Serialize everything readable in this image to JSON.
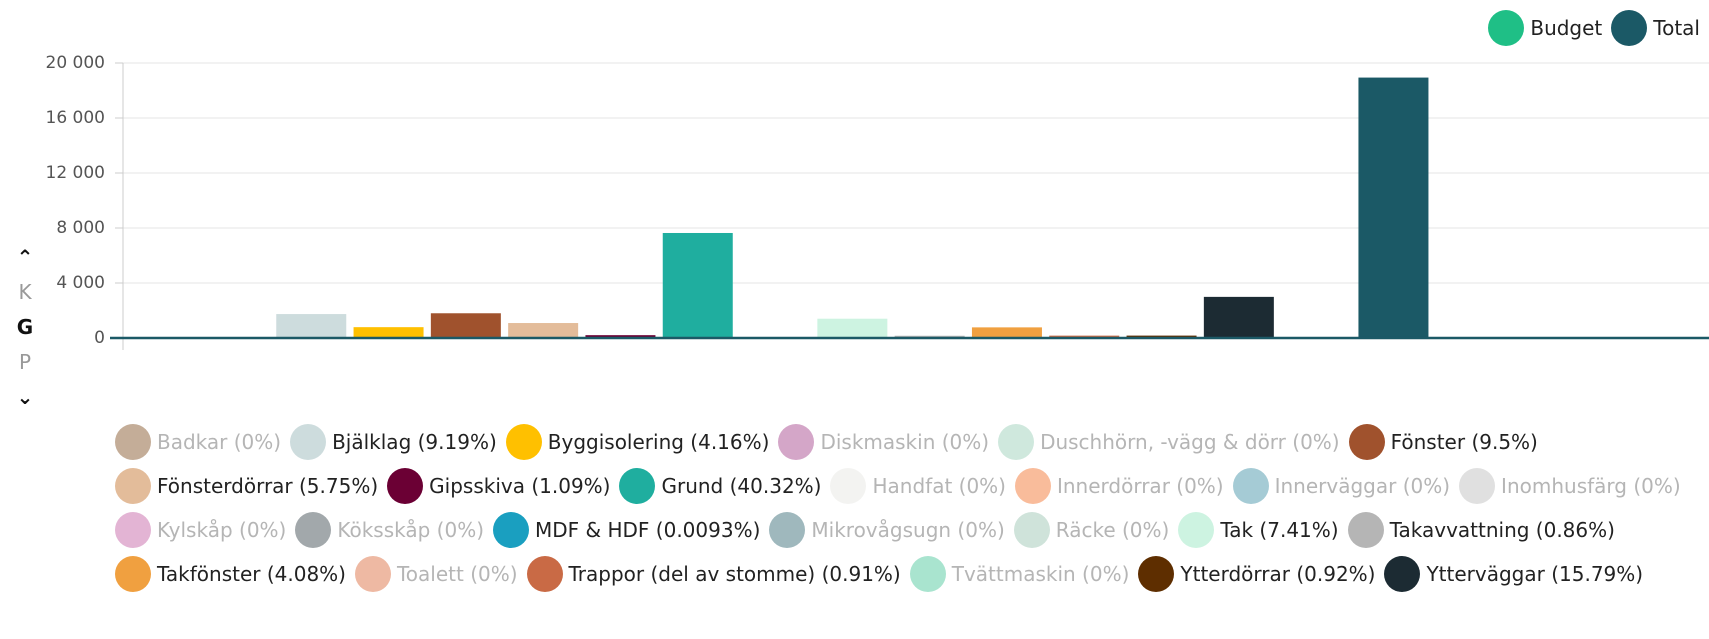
{
  "chart_data": {
    "type": "bar",
    "series_legend": [
      {
        "name": "Budget",
        "color": "#1fbf86"
      },
      {
        "name": "Total",
        "color": "#1b5966"
      }
    ],
    "categories": [
      null,
      null,
      null,
      null,
      null,
      null,
      null,
      null,
      null,
      null,
      null,
      null,
      null,
      null,
      null,
      null,
      null
    ],
    "values": [
      null,
      null,
      1741,
      788,
      1799,
      1089,
      206,
      7637,
      2,
      1403,
      163,
      773,
      172,
      174,
      2991,
      null,
      18940
    ],
    "colors": [
      null,
      null,
      "#cddcdd",
      "#ffc000",
      "#a0522d",
      "#e3bc9a",
      "#6b0034",
      "#1fae9f",
      "#1a9fc0",
      "#cdf3e1",
      "#b5b5b5",
      "#f0a040",
      "#c96a45",
      "#5e2e00",
      "#1c2b33",
      null,
      "#1b5966"
    ],
    "ylim": [
      0,
      20000
    ],
    "yticks": [
      0,
      {
        "value": 4000,
        "label": "4 000"
      },
      {
        "value": 8000,
        "label": "8 000"
      },
      {
        "value": 12000,
        "label": "12 000"
      },
      {
        "value": 16000,
        "label": "16 000"
      },
      {
        "value": 20000,
        "label": "20 000"
      }
    ],
    "grid": true,
    "legend_items": [
      {
        "label": "Badkar (0%)",
        "color": "#c4ad98",
        "hidden": true
      },
      {
        "label": "Bjälklag (9.19%)",
        "color": "#cddcdd",
        "hidden": false
      },
      {
        "label": "Byggisolering (4.16%)",
        "color": "#ffc000",
        "hidden": false
      },
      {
        "label": "Diskmaskin (0%)",
        "color": "#d4a6c8",
        "hidden": true
      },
      {
        "label": "Duschhörn, -vägg & dörr (0%)",
        "color": "#cfe8dd",
        "hidden": true
      },
      {
        "label": "Fönster (9.5%)",
        "color": "#a0522d",
        "hidden": false
      },
      {
        "label": "Fönsterdörrar (5.75%)",
        "color": "#e3bc9a",
        "hidden": false
      },
      {
        "label": "Gipsskiva (1.09%)",
        "color": "#6b0034",
        "hidden": false
      },
      {
        "label": "Grund (40.32%)",
        "color": "#1fae9f",
        "hidden": false
      },
      {
        "label": "Handfat (0%)",
        "color": "#f3f3f1",
        "hidden": true
      },
      {
        "label": "Innerdörrar (0%)",
        "color": "#f9bc9b",
        "hidden": true
      },
      {
        "label": "Innerväggar (0%)",
        "color": "#a5cbd5",
        "hidden": true
      },
      {
        "label": "Inomhusfärg (0%)",
        "color": "#e0e0e0",
        "hidden": true
      },
      {
        "label": "Kylskåp (0%)",
        "color": "#e3b4d4",
        "hidden": true
      },
      {
        "label": "Köksskåp (0%)",
        "color": "#a2a8ab",
        "hidden": true
      },
      {
        "label": "MDF & HDF (0.0093%)",
        "color": "#1a9fc0",
        "hidden": false
      },
      {
        "label": "Mikrovågsugn (0%)",
        "color": "#9fb8bd",
        "hidden": true
      },
      {
        "label": "Räcke (0%)",
        "color": "#cfe3da",
        "hidden": true
      },
      {
        "label": "Tak (7.41%)",
        "color": "#cdf3e1",
        "hidden": false
      },
      {
        "label": "Takavvattning (0.86%)",
        "color": "#b5b5b5",
        "hidden": false
      },
      {
        "label": "Takfönster (4.08%)",
        "color": "#f0a040",
        "hidden": false
      },
      {
        "label": "Toalett (0%)",
        "color": "#eeb9a3",
        "hidden": true
      },
      {
        "label": "Trappor (del av stomme) (0.91%)",
        "color": "#c96a45",
        "hidden": false
      },
      {
        "label": "Tvättmaskin (0%)",
        "color": "#a9e4cf",
        "hidden": true
      },
      {
        "label": "Ytterdörrar (0.92%)",
        "color": "#5e2e00",
        "hidden": false
      },
      {
        "label": "Ytterväggar (15.79%)",
        "color": "#1c2b33",
        "hidden": false
      }
    ]
  },
  "nav": {
    "items": [
      "K",
      "G",
      "P"
    ],
    "active": "G"
  }
}
